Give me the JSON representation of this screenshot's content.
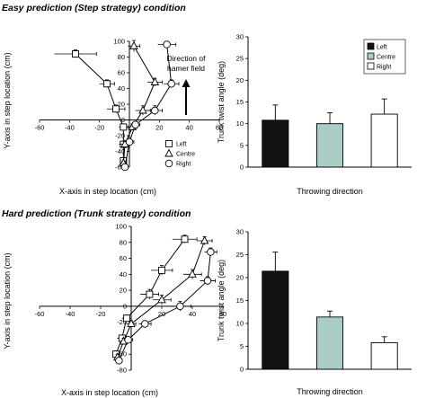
{
  "chart_data": [
    {
      "panel": "top-left",
      "section_title": "Easy prediction (Step strategy) condition",
      "type": "scatter",
      "xlabel": "X-axis in step location (cm)",
      "ylabel": "Y-axis in step location (cm)",
      "xlim": [
        -60,
        60
      ],
      "ylim": [
        -60,
        100
      ],
      "xticks": [
        -60,
        -40,
        -20,
        0,
        20,
        40,
        60
      ],
      "yticks": [
        -60,
        -40,
        -20,
        0,
        20,
        40,
        60,
        80,
        100
      ],
      "annotation": [
        "Direction of",
        "hamer field"
      ],
      "legend": [
        "Left",
        "Centre",
        "Right"
      ],
      "series": [
        {
          "name": "Left",
          "marker": "square",
          "x": [
            -36,
            -15,
            -9,
            -4,
            -4,
            -4
          ],
          "y": [
            84,
            46,
            14,
            -9,
            -31,
            -52
          ],
          "xerr": [
            14,
            5,
            6,
            3,
            3,
            2
          ],
          "yerr": [
            5,
            5,
            5,
            3,
            3,
            3
          ]
        },
        {
          "name": "Centre",
          "marker": "triangle",
          "x": [
            3,
            17,
            9,
            2,
            -3,
            -4
          ],
          "y": [
            94,
            48,
            12,
            -9,
            -31,
            -55
          ],
          "xerr": [
            4,
            5,
            5,
            3,
            3,
            2
          ],
          "yerr": [
            7,
            5,
            6,
            4,
            3,
            3
          ]
        },
        {
          "name": "Right",
          "marker": "circle",
          "x": [
            25,
            28,
            17,
            4,
            0,
            -3
          ],
          "y": [
            96,
            46,
            12,
            -6,
            -28,
            -60
          ],
          "xerr": [
            6,
            5,
            5,
            3,
            3,
            2
          ],
          "yerr": [
            3,
            5,
            6,
            3,
            3,
            3
          ]
        }
      ]
    },
    {
      "panel": "top-right",
      "type": "bar",
      "xlabel": "Throwing direction",
      "ylabel": "Trunk twist angle (deg)",
      "ylim": [
        0,
        30
      ],
      "yticks": [
        0,
        5,
        10,
        15,
        20,
        25,
        30
      ],
      "categories": [
        "Left",
        "Centre",
        "Right"
      ],
      "values": [
        10.8,
        10.0,
        12.2
      ],
      "errors": [
        3.5,
        2.5,
        3.5
      ],
      "colors": [
        "#111111",
        "#a8cdc6",
        "#ffffff"
      ],
      "legend": [
        "Left",
        "Centre",
        "Right"
      ]
    },
    {
      "panel": "bottom-left",
      "section_title": "Hard prediction (Trunk strategy) condition",
      "type": "scatter",
      "xlabel": "X-axis in step location (cm)",
      "ylabel": "Y-axis in step location (cm)",
      "xlim": [
        -60,
        60
      ],
      "ylim": [
        -80,
        100
      ],
      "xticks": [
        -60,
        -40,
        -20,
        0,
        20,
        40,
        60
      ],
      "yticks": [
        -80,
        -60,
        -40,
        -20,
        0,
        20,
        40,
        60,
        80,
        100
      ],
      "series": [
        {
          "name": "Left",
          "marker": "square",
          "x": [
            35,
            20,
            12,
            -3,
            -6,
            -10
          ],
          "y": [
            84,
            45,
            15,
            -15,
            -40,
            -60
          ],
          "xerr": [
            8,
            7,
            6,
            3,
            3,
            2
          ],
          "yerr": [
            5,
            6,
            6,
            4,
            4,
            4
          ]
        },
        {
          "name": "Centre",
          "marker": "triangle",
          "x": [
            48,
            40,
            20,
            0,
            -5,
            -9
          ],
          "y": [
            82,
            40,
            8,
            -22,
            -44,
            -64
          ],
          "xerr": [
            5,
            6,
            6,
            3,
            3,
            2
          ],
          "yerr": [
            5,
            6,
            6,
            4,
            4,
            4
          ]
        },
        {
          "name": "Right",
          "marker": "circle",
          "x": [
            52,
            50,
            32,
            9,
            -2,
            -8
          ],
          "y": [
            68,
            32,
            0,
            -22,
            -42,
            -68
          ],
          "xerr": [
            4,
            5,
            7,
            4,
            3,
            2
          ],
          "yerr": [
            5,
            5,
            6,
            4,
            4,
            4
          ]
        }
      ]
    },
    {
      "panel": "bottom-right",
      "type": "bar",
      "xlabel": "Throwing direction",
      "ylabel": "Trunk twist angle (deg)",
      "ylim": [
        0,
        30
      ],
      "yticks": [
        0,
        5,
        10,
        15,
        20,
        25,
        30
      ],
      "categories": [
        "Left",
        "Centre",
        "Right"
      ],
      "values": [
        21.4,
        11.4,
        5.8
      ],
      "errors": [
        4.2,
        1.3,
        1.3
      ],
      "colors": [
        "#111111",
        "#a8cdc6",
        "#ffffff"
      ]
    }
  ]
}
